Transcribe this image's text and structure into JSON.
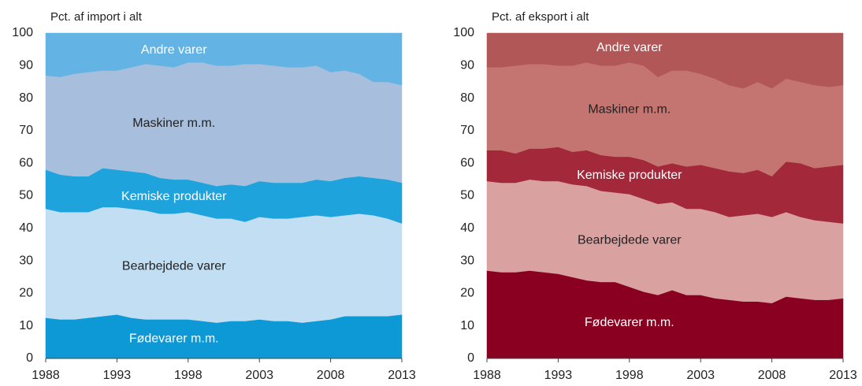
{
  "chart_data": [
    {
      "type": "stacked_area",
      "y_label": "Pct. af import i alt",
      "x": [
        1988,
        1989,
        1990,
        1991,
        1992,
        1993,
        1994,
        1995,
        1996,
        1997,
        1998,
        1999,
        2000,
        2001,
        2002,
        2003,
        2004,
        2005,
        2006,
        2007,
        2008,
        2009,
        2010,
        2011,
        2012,
        2013
      ],
      "xlim": [
        1988,
        2013
      ],
      "xticks": [
        1988,
        1993,
        1998,
        2003,
        2008,
        2013
      ],
      "ylim": [
        0,
        100
      ],
      "yticks": [
        0,
        10,
        20,
        30,
        40,
        50,
        60,
        70,
        80,
        90,
        100
      ],
      "series": [
        {
          "name": "Fødevarer m.m.",
          "color": "#0d98d6",
          "label_color": "#ffffff",
          "values": [
            12.5,
            12,
            12,
            12.5,
            13,
            13.5,
            12.5,
            12,
            12,
            12,
            12,
            11.5,
            11,
            11.5,
            11.5,
            12,
            11.5,
            11.5,
            11,
            11.5,
            12,
            13,
            13,
            13,
            13,
            13.5
          ]
        },
        {
          "name": "Bearbejdede varer",
          "color": "#c1def2",
          "label_color": "#222222",
          "values": [
            33.5,
            33,
            33,
            32.5,
            33.5,
            33,
            33.5,
            33.5,
            32.5,
            32.5,
            33,
            32.5,
            32,
            31.5,
            30.5,
            31.5,
            31.5,
            31.5,
            32.5,
            32.5,
            31.5,
            31,
            31.5,
            31,
            30,
            28
          ]
        },
        {
          "name": "Kemiske produkter",
          "color": "#1fa3dc",
          "label_color": "#ffffff",
          "values": [
            12,
            11.5,
            11,
            11,
            12,
            11.5,
            11.5,
            11.5,
            11,
            10.5,
            10,
            10,
            10,
            10.5,
            11,
            11,
            11,
            11,
            10.5,
            11,
            11,
            11.5,
            11.5,
            11.5,
            12,
            12.5
          ]
        },
        {
          "name": "Maskiner m.m.",
          "color": "#a7bfdd",
          "label_color": "#222222",
          "values": [
            29,
            30,
            31.5,
            32,
            30,
            30.5,
            32,
            33.5,
            34.5,
            34.5,
            36,
            37,
            37,
            36.5,
            37.5,
            36,
            36,
            35.5,
            35.5,
            35,
            33.5,
            33,
            31.5,
            29.5,
            30,
            30
          ]
        },
        {
          "name": "Andre varer",
          "color": "#63b4e5",
          "label_color": "#ffffff",
          "values": [
            13,
            13.5,
            12.5,
            12,
            11.5,
            11.5,
            10.5,
            9.5,
            10,
            10.5,
            9,
            9,
            10,
            10,
            9.5,
            9.5,
            10,
            10.5,
            10.5,
            10,
            12,
            11.5,
            12.5,
            15,
            15,
            16
          ]
        }
      ]
    },
    {
      "type": "stacked_area",
      "y_label": "Pct. af eksport i alt",
      "x": [
        1988,
        1989,
        1990,
        1991,
        1992,
        1993,
        1994,
        1995,
        1996,
        1997,
        1998,
        1999,
        2000,
        2001,
        2002,
        2003,
        2004,
        2005,
        2006,
        2007,
        2008,
        2009,
        2010,
        2011,
        2012,
        2013
      ],
      "xlim": [
        1988,
        2013
      ],
      "xticks": [
        1988,
        1993,
        1998,
        2003,
        2008,
        2013
      ],
      "ylim": [
        0,
        100
      ],
      "yticks": [
        0,
        10,
        20,
        30,
        40,
        50,
        60,
        70,
        80,
        90,
        100
      ],
      "series": [
        {
          "name": "Fødevarer m.m.",
          "color": "#8a0020",
          "label_color": "#ffffff",
          "values": [
            27,
            26.5,
            26.5,
            27,
            26.5,
            26,
            25,
            24,
            23.5,
            23.5,
            22,
            20.5,
            19.5,
            21,
            19.5,
            19.5,
            18.5,
            18,
            17.5,
            17.5,
            17,
            19,
            18.5,
            18,
            18,
            18.5
          ]
        },
        {
          "name": "Bearbejdede varer",
          "color": "#d9a2a1",
          "label_color": "#222222",
          "values": [
            27.5,
            27.5,
            27.5,
            28,
            28,
            28.5,
            28.5,
            29,
            28,
            27.5,
            28.5,
            28.5,
            28,
            27,
            26.5,
            26.5,
            26.5,
            25.5,
            26.5,
            27,
            26.5,
            26,
            25,
            24.5,
            24,
            23
          ]
        },
        {
          "name": "Kemiske produkter",
          "color": "#a2283a",
          "label_color": "#ffffff",
          "values": [
            9.5,
            10,
            9,
            9.5,
            10,
            10.5,
            10,
            11,
            11,
            11,
            11.5,
            12,
            11.5,
            12,
            13,
            13.5,
            13.5,
            14,
            13,
            13.5,
            12.5,
            15.5,
            16.5,
            16,
            17,
            18
          ]
        },
        {
          "name": "Maskiner m.m.",
          "color": "#c57571",
          "label_color": "#222222",
          "values": [
            25.5,
            25.5,
            27,
            26,
            26,
            25,
            26.5,
            27,
            27.5,
            28,
            29,
            29,
            27.5,
            28.5,
            29.5,
            28,
            27.5,
            26.5,
            26,
            27,
            27,
            25.5,
            25,
            25.5,
            24.5,
            24.5
          ]
        },
        {
          "name": "Andre varer",
          "color": "#b25757",
          "label_color": "#ffffff",
          "values": [
            10.5,
            10.5,
            10,
            9.5,
            9.5,
            10,
            10,
            9,
            10,
            10,
            9,
            10,
            13.5,
            11.5,
            11.5,
            12.5,
            14,
            16,
            17,
            15,
            17,
            14,
            15,
            16,
            16.5,
            16
          ]
        }
      ]
    }
  ]
}
